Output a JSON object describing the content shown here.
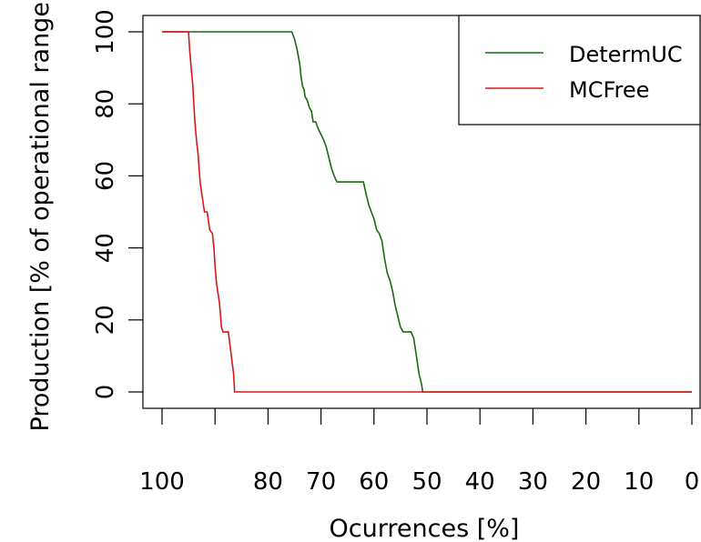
{
  "chart_data": {
    "type": "line",
    "title": "",
    "xlabel": "Ocurrences [%]",
    "ylabel": "Production [% of operational range]",
    "xlim": [
      100,
      0
    ],
    "ylim": [
      -5,
      105
    ],
    "x_ticks": [
      100,
      90,
      80,
      70,
      60,
      50,
      40,
      30,
      20,
      10,
      0
    ],
    "x_tick_labels": [
      "100",
      "",
      "80",
      "70",
      "60",
      "50",
      "40",
      "30",
      "20",
      "10",
      "0"
    ],
    "y_ticks": [
      0,
      20,
      40,
      60,
      80,
      100
    ],
    "y_tick_labels": [
      "0",
      "20",
      "40",
      "60",
      "80",
      "100"
    ],
    "grid": false,
    "legend_position": "top-right",
    "series": [
      {
        "name": "DetermUC",
        "color": "#1a6a10",
        "x": [
          100,
          75.5,
          75,
          74.5,
          74,
          73.8,
          73.5,
          73.2,
          73,
          72.6,
          72.2,
          71.8,
          71.5,
          71,
          70.5,
          69.5,
          69,
          68.5,
          68,
          67.5,
          67,
          66.5,
          65.5,
          64,
          62,
          61.5,
          61,
          60.5,
          60,
          59.5,
          59,
          58.5,
          58,
          57.5,
          57,
          56.5,
          56,
          55.5,
          55,
          54.5,
          54,
          53.5,
          53,
          52.5,
          52,
          51.5,
          51,
          50.8,
          50.5,
          0
        ],
        "y": [
          100,
          100,
          98,
          95,
          91,
          88,
          85,
          84,
          82,
          81,
          79,
          78,
          75,
          75,
          73,
          70,
          68,
          65,
          62,
          60,
          58.3,
          58.3,
          58.3,
          58.3,
          58.3,
          55,
          52,
          50,
          48,
          45,
          44,
          42,
          37,
          33,
          31,
          28,
          24,
          21,
          18,
          16.7,
          16.7,
          16.7,
          16.7,
          15,
          10,
          5,
          2,
          0,
          0,
          0
        ]
      },
      {
        "name": "MCFree",
        "color": "#d81818",
        "x": [
          100,
          95,
          94.8,
          94.5,
          94.2,
          94,
          93.8,
          93.5,
          93.2,
          93,
          92.8,
          92.5,
          92.2,
          92,
          91.5,
          91,
          90.5,
          90.2,
          90,
          89.7,
          89.5,
          89.2,
          89,
          88.8,
          88.5,
          88,
          87.5,
          86.5,
          86.3,
          86.2,
          0
        ],
        "y": [
          100,
          100,
          95,
          90,
          85,
          80,
          75,
          70,
          66,
          62,
          58,
          55,
          52,
          50,
          50,
          45,
          44,
          40,
          35,
          30,
          28,
          25,
          22,
          18,
          16.7,
          16.7,
          16.7,
          5,
          0,
          0,
          0
        ]
      }
    ]
  }
}
